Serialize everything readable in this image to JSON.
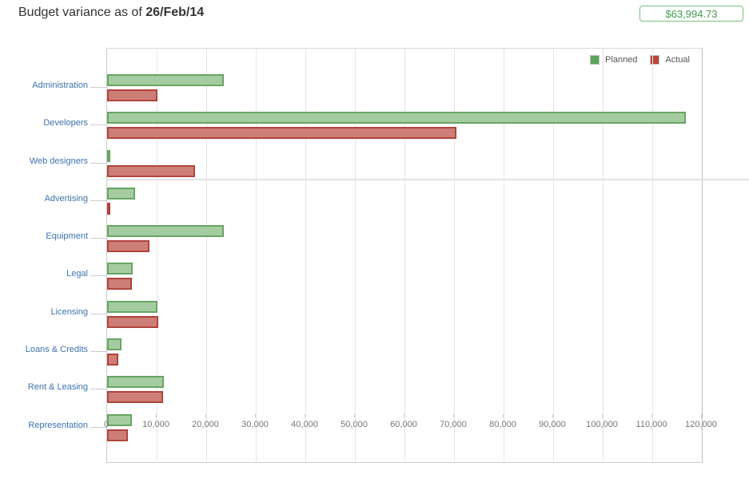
{
  "header": {
    "title_prefix": "Budget variance as of ",
    "title_date": "26/Feb/14",
    "badge_value": "$63,994.73"
  },
  "chart_data": {
    "type": "bar",
    "orientation": "horizontal",
    "title": "Budget variance as of 26/Feb/14",
    "categories": [
      "Administration",
      "Developers",
      "Web designers",
      "Advertising",
      "Equipment",
      "Legal",
      "Licensing",
      "Loans & Credits",
      "Rent & Leasing",
      "Representation"
    ],
    "series": [
      {
        "name": "Planned",
        "legend_color": "#5aa45a",
        "fill": "#a5cca1",
        "stroke": "#68a563",
        "values": [
          23500,
          116800,
          400,
          5600,
          23500,
          5200,
          10200,
          2850,
          11450,
          5050
        ]
      },
      {
        "name": "Actual",
        "legend_color": "#b8453d",
        "fill": "#cd7f77",
        "stroke": "#b0443d",
        "values": [
          10150,
          70500,
          17700,
          250,
          8500,
          4950,
          10300,
          2300,
          11300,
          4200
        ]
      }
    ],
    "xlim": [
      0,
      120000
    ],
    "xtick_step": 10000,
    "xtick_labels": [
      "0",
      "10,000",
      "20,000",
      "30,000",
      "40,000",
      "50,000",
      "60,000",
      "70,000",
      "80,000",
      "90,000",
      "100,000",
      "110,000",
      "120,000"
    ],
    "grid": true,
    "legend_position": "top-right"
  },
  "colors": {
    "category_link": "#3b73af",
    "axis_label": "#777777",
    "badge_text": "#3e9b4f",
    "badge_border": "#79bd82",
    "gridline": "#e6e6e6"
  }
}
